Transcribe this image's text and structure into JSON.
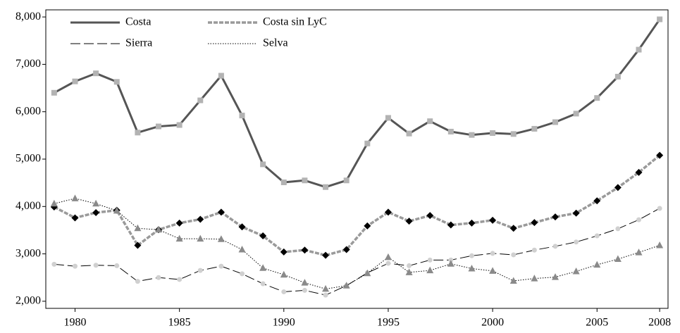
{
  "chart_data": {
    "type": "line",
    "x": [
      1979,
      1980,
      1981,
      1982,
      1983,
      1984,
      1985,
      1986,
      1987,
      1988,
      1989,
      1990,
      1991,
      1992,
      1993,
      1994,
      1995,
      1996,
      1997,
      1998,
      1999,
      2000,
      2001,
      2002,
      2003,
      2004,
      2005,
      2006,
      2007,
      2008
    ],
    "xlim": [
      1978.6,
      2008.4
    ],
    "xticks": [
      1980,
      1985,
      1990,
      1995,
      2000,
      2005,
      2008
    ],
    "ylim": [
      1850,
      8150
    ],
    "yticks": [
      {
        "value": 2000,
        "label": "2,000"
      },
      {
        "value": 3000,
        "label": "3,000"
      },
      {
        "value": 4000,
        "label": "4,000"
      },
      {
        "value": 5000,
        "label": "5,000"
      },
      {
        "value": 6000,
        "label": "6,000"
      },
      {
        "value": 7000,
        "label": "7,000"
      },
      {
        "value": 8000,
        "label": "8,000"
      }
    ],
    "legend": "upper left",
    "series": [
      {
        "name": "Costa",
        "color": "#555555",
        "line_width": 3,
        "dash": "none",
        "marker": "square",
        "marker_color": "#b3b3b3",
        "values": [
          6400,
          6640,
          6810,
          6630,
          5560,
          5690,
          5720,
          6240,
          6760,
          5920,
          4890,
          4510,
          4550,
          4410,
          4550,
          5330,
          5870,
          5540,
          5800,
          5580,
          5510,
          5550,
          5530,
          5640,
          5780,
          5960,
          6290,
          6740,
          7310,
          7950
        ]
      },
      {
        "name": "Costa sin LyC",
        "color": "#9a9a9a",
        "line_width": 3.5,
        "dash": "6,2",
        "marker": "diamond",
        "marker_color": "#000000",
        "values": [
          3990,
          3760,
          3870,
          3920,
          3180,
          3510,
          3650,
          3730,
          3880,
          3570,
          3380,
          3040,
          3080,
          2970,
          3090,
          3590,
          3880,
          3690,
          3810,
          3610,
          3650,
          3710,
          3540,
          3660,
          3780,
          3860,
          4120,
          4400,
          4720,
          5080
        ]
      },
      {
        "name": "Sierra",
        "color": "#000000",
        "line_width": 1,
        "dash": "14,5",
        "marker": "circle",
        "marker_color": "#d0d0d0",
        "values": [
          2780,
          2740,
          2760,
          2750,
          2420,
          2500,
          2460,
          2650,
          2740,
          2580,
          2370,
          2200,
          2230,
          2130,
          2330,
          2600,
          2800,
          2750,
          2870,
          2870,
          2960,
          3010,
          2980,
          3080,
          3160,
          3250,
          3380,
          3530,
          3720,
          3960
        ]
      },
      {
        "name": "Selva",
        "color": "#000000",
        "line_width": 1,
        "dash": "1.5,2",
        "marker": "triangle",
        "marker_color": "#8a8a8a",
        "values": [
          4060,
          4170,
          4060,
          3910,
          3540,
          3510,
          3320,
          3320,
          3310,
          3090,
          2700,
          2560,
          2390,
          2260,
          2330,
          2590,
          2930,
          2610,
          2650,
          2790,
          2690,
          2640,
          2430,
          2480,
          2510,
          2630,
          2770,
          2890,
          3030,
          3180
        ]
      }
    ]
  }
}
